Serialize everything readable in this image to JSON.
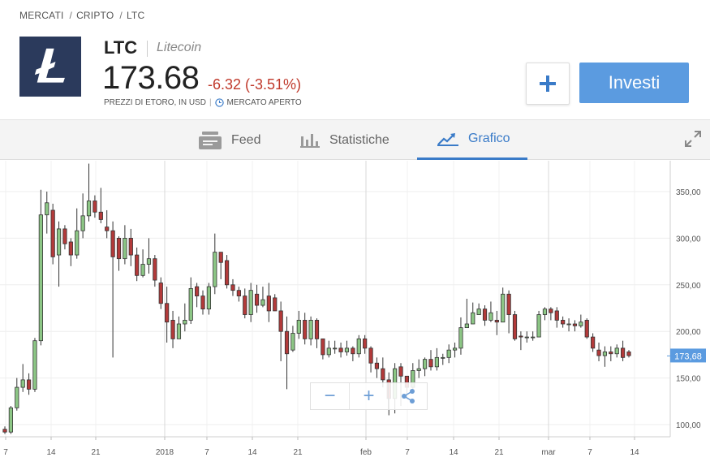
{
  "breadcrumb": [
    "MERCATI",
    "CRIPTO",
    "LTC"
  ],
  "asset": {
    "ticker": "LTC",
    "name": "Litecoin",
    "price": "173.68",
    "change": "-6.32 (-3.51%)",
    "price_source": "PREZZI DI ETORO, IN USD",
    "market_status": "MERCATO APERTO",
    "change_color": "#c0392b",
    "logo_color": "#2b3a5c"
  },
  "actions": {
    "plus_label": "+",
    "invest_label": "Investi"
  },
  "tabs": [
    {
      "label": "Feed",
      "icon": "feed-icon",
      "active": false
    },
    {
      "label": "Statistiche",
      "icon": "stats-bar-icon",
      "active": false
    },
    {
      "label": "Grafico",
      "icon": "chart-line-icon",
      "active": true
    }
  ],
  "accent_color": "#3a7bc8",
  "chart_data": {
    "type": "candlestick",
    "y_ticks": [
      "350,00",
      "300,00",
      "250,00",
      "200,00",
      "150,00",
      "100,00"
    ],
    "ylim": [
      85,
      380
    ],
    "x_ticks": [
      "7",
      "14",
      "21",
      "2018",
      "7",
      "14",
      "21",
      "feb",
      "7",
      "14",
      "21",
      "mar",
      "7",
      "14"
    ],
    "current_price_label": "173,68",
    "current_price": 173.68,
    "up_color": "#8cc685",
    "down_color": "#b23a3a",
    "candles": [
      [
        95,
        92,
        98,
        90
      ],
      [
        92,
        118,
        120,
        90
      ],
      [
        118,
        140,
        150,
        115
      ],
      [
        140,
        148,
        165,
        135
      ],
      [
        148,
        138,
        155,
        132
      ],
      [
        138,
        190,
        193,
        135
      ],
      [
        190,
        325,
        352,
        185
      ],
      [
        325,
        338,
        350,
        305
      ],
      [
        330,
        280,
        337,
        272
      ],
      [
        282,
        310,
        318,
        248
      ],
      [
        310,
        294,
        314,
        288
      ],
      [
        296,
        282,
        300,
        270
      ],
      [
        282,
        308,
        332,
        278
      ],
      [
        308,
        324,
        348,
        300
      ],
      [
        324,
        340,
        380,
        318
      ],
      [
        340,
        328,
        346,
        322
      ],
      [
        328,
        320,
        354,
        316
      ],
      [
        312,
        308,
        330,
        300
      ],
      [
        308,
        280,
        318,
        172
      ],
      [
        300,
        278,
        302,
        265
      ],
      [
        278,
        300,
        314,
        272
      ],
      [
        300,
        282,
        310,
        270
      ],
      [
        282,
        260,
        290,
        254
      ],
      [
        260,
        272,
        288,
        258
      ],
      [
        272,
        278,
        300,
        262
      ],
      [
        278,
        255,
        282,
        248
      ],
      [
        252,
        230,
        258,
        224
      ],
      [
        230,
        210,
        248,
        188
      ],
      [
        212,
        192,
        222,
        182
      ],
      [
        192,
        208,
        216,
        196
      ],
      [
        208,
        212,
        230,
        200
      ],
      [
        212,
        246,
        258,
        208
      ],
      [
        248,
        238,
        252,
        226
      ],
      [
        238,
        224,
        244,
        218
      ],
      [
        224,
        248,
        252,
        218
      ],
      [
        248,
        285,
        305,
        240
      ],
      [
        285,
        274,
        285,
        256
      ],
      [
        276,
        250,
        282,
        246
      ],
      [
        250,
        244,
        256,
        238
      ],
      [
        244,
        238,
        248,
        232
      ],
      [
        238,
        218,
        246,
        214
      ],
      [
        218,
        244,
        252,
        210
      ],
      [
        240,
        228,
        250,
        220
      ],
      [
        228,
        234,
        248,
        226
      ],
      [
        238,
        222,
        252,
        210
      ],
      [
        236,
        222,
        240,
        222
      ],
      [
        222,
        200,
        232,
        168
      ],
      [
        200,
        176,
        216,
        138
      ],
      [
        180,
        198,
        206,
        178
      ],
      [
        198,
        212,
        222,
        192
      ],
      [
        212,
        192,
        220,
        186
      ],
      [
        192,
        212,
        216,
        185
      ],
      [
        212,
        192,
        214,
        182
      ],
      [
        192,
        175,
        186,
        170
      ],
      [
        175,
        182,
        190,
        172
      ],
      [
        182,
        182,
        190,
        176
      ],
      [
        182,
        178,
        188,
        172
      ],
      [
        178,
        182,
        190,
        174
      ],
      [
        182,
        176,
        184,
        168
      ],
      [
        176,
        192,
        196,
        172
      ],
      [
        192,
        182,
        196,
        176
      ],
      [
        182,
        166,
        184,
        156
      ],
      [
        166,
        160,
        172,
        150
      ],
      [
        160,
        148,
        172,
        140
      ],
      [
        148,
        128,
        156,
        110
      ],
      [
        128,
        160,
        166,
        112
      ],
      [
        162,
        152,
        166,
        120
      ],
      [
        152,
        140,
        150,
        128
      ],
      [
        140,
        158,
        166,
        138
      ],
      [
        158,
        160,
        170,
        150
      ],
      [
        160,
        170,
        172,
        152
      ],
      [
        170,
        162,
        180,
        158
      ],
      [
        162,
        172,
        182,
        158
      ],
      [
        172,
        172,
        176,
        164
      ],
      [
        172,
        180,
        186,
        166
      ],
      [
        180,
        182,
        188,
        172
      ],
      [
        182,
        204,
        215,
        175
      ],
      [
        204,
        208,
        235,
        205
      ],
      [
        208,
        220,
        231,
        208
      ],
      [
        218,
        224,
        230,
        218
      ],
      [
        224,
        212,
        228,
        206
      ],
      [
        212,
        220,
        232,
        210
      ],
      [
        212,
        210,
        222,
        196
      ],
      [
        210,
        240,
        247,
        212
      ],
      [
        240,
        218,
        244,
        198
      ],
      [
        218,
        192,
        222,
        190
      ],
      [
        195,
        194,
        200,
        180
      ],
      [
        194,
        194,
        200,
        188
      ],
      [
        194,
        194,
        200,
        190
      ],
      [
        194,
        218,
        222,
        208
      ],
      [
        218,
        224,
        226,
        212
      ],
      [
        224,
        220,
        226,
        212
      ],
      [
        222,
        212,
        226,
        204
      ],
      [
        212,
        208,
        216,
        204
      ],
      [
        208,
        208,
        214,
        200
      ],
      [
        208,
        206,
        212,
        200
      ],
      [
        206,
        210,
        218,
        204
      ],
      [
        212,
        194,
        214,
        192
      ],
      [
        194,
        182,
        198,
        178
      ],
      [
        180,
        174,
        188,
        168
      ],
      [
        174,
        178,
        184,
        162
      ],
      [
        178,
        176,
        184,
        168
      ],
      [
        176,
        182,
        186,
        172
      ],
      [
        182,
        172,
        190,
        168
      ],
      [
        178,
        174,
        180,
        172
      ]
    ]
  },
  "zoom_controls": {
    "zoom_out": "−",
    "zoom_in": "+"
  }
}
